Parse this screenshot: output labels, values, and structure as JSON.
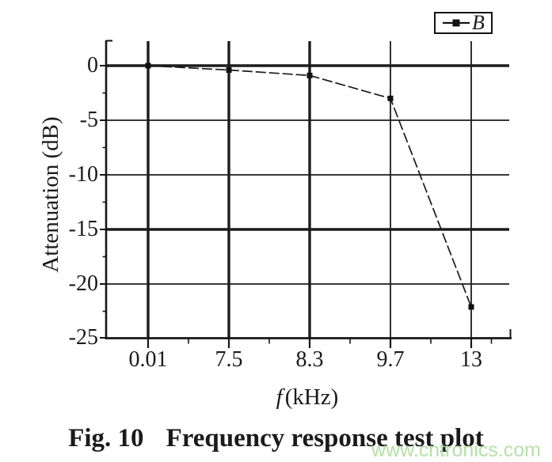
{
  "chart_data": {
    "type": "line",
    "title": "",
    "xlabel_var": "f",
    "xlabel_unit": "(kHz)",
    "ylabel": "Attenuation (dB)",
    "x_tick_labels": [
      "0.01",
      "7.5",
      "8.3",
      "9.7",
      "13"
    ],
    "x_values_khz": [
      0.01,
      7.5,
      8.3,
      9.7,
      13
    ],
    "y_tick_labels": [
      "0",
      "-5",
      "-10",
      "-15",
      "-20",
      "-25"
    ],
    "y_ticks": [
      0,
      -5,
      -10,
      -15,
      -20,
      -25
    ],
    "ylim": [
      -25,
      2.25
    ],
    "grid": "on",
    "legend_position": "top-right",
    "series": [
      {
        "name": "B",
        "marker": "filled-square",
        "line_color": "#1a1a1a",
        "values": [
          0,
          -0.4,
          -0.9,
          -3.0,
          -22.1
        ]
      }
    ]
  },
  "caption": {
    "fig_label": "Fig. 10",
    "text": "Frequency response test plot"
  },
  "watermark": {
    "text": "www.cntronics.com",
    "color": "#b5e1a8"
  }
}
